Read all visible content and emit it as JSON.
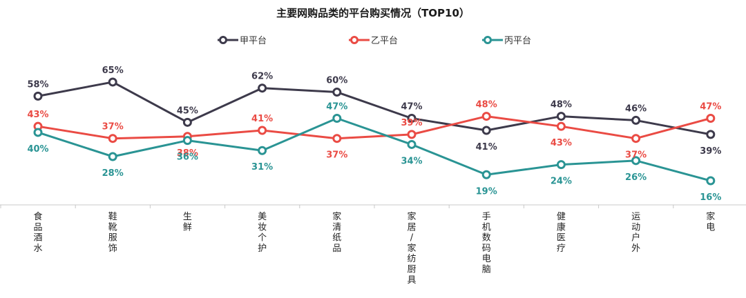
{
  "chart_data": {
    "type": "line",
    "title": "主要网购品类的平台购买情况（TOP10）",
    "categories": [
      "食品酒水",
      "鞋靴服饰",
      "生鲜",
      "美妆个护",
      "家清纸品",
      "家居/家纺厨具",
      "手机数码电脑",
      "健康医疗",
      "运动户外",
      "家电"
    ],
    "series": [
      {
        "name": "甲平台",
        "color": "#3d3a4b",
        "values": [
          58,
          65,
          45,
          62,
          60,
          47,
          41,
          48,
          46,
          39
        ],
        "label_text": [
          "58%",
          "65%",
          "45%",
          "62%",
          "60%",
          "47%",
          "41%",
          "48%",
          "46%",
          "39%"
        ]
      },
      {
        "name": "乙平台",
        "color": "#ea4b44",
        "values": [
          43,
          37,
          38,
          41,
          37,
          39,
          48,
          43,
          37,
          47
        ],
        "label_text": [
          "43%",
          "37%",
          "38%",
          "41%",
          "37%",
          "39%",
          "48%",
          "43%",
          "37%",
          "47%"
        ]
      },
      {
        "name": "丙平台",
        "color": "#2a9494",
        "values": [
          40,
          28,
          36,
          31,
          47,
          34,
          19,
          24,
          26,
          16
        ],
        "label_text": [
          "40%",
          "28%",
          "36%",
          "31%",
          "47%",
          "34%",
          "19%",
          "24%",
          "26%",
          "16%"
        ]
      }
    ],
    "legend_position": "top-center",
    "grid": false
  }
}
